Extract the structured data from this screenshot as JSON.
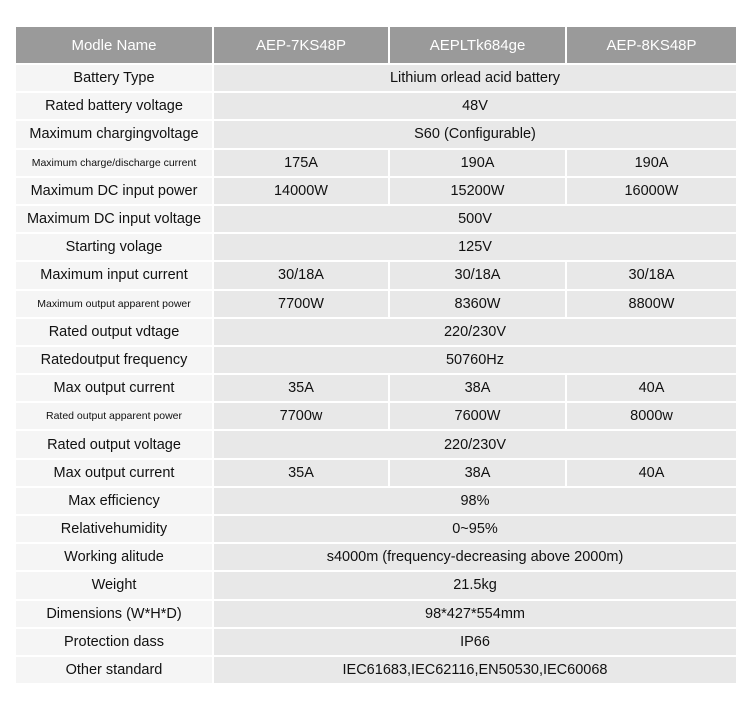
{
  "header": [
    "Modle Name",
    "AEP-7KS48P",
    "AEPLTk684ge",
    "AEP-8KS48P"
  ],
  "rows": [
    {
      "label": "Battery Type",
      "values": [
        "Lithium orlead acid battery"
      ]
    },
    {
      "label": "Rated battery voltage",
      "values": [
        "48V"
      ]
    },
    {
      "label": "Maximum chargingvoltage",
      "values": [
        "S60 (Configurable)"
      ]
    },
    {
      "label": "Maximum charge/discharge current",
      "small": true,
      "values": [
        "175A",
        "190A",
        "190A"
      ]
    },
    {
      "label": "Maximum DC input power",
      "values": [
        "14000W",
        "15200W",
        "16000W"
      ]
    },
    {
      "label": "Maximum DC input voltage",
      "values": [
        "500V"
      ]
    },
    {
      "label": "Starting volage",
      "values": [
        "125V"
      ]
    },
    {
      "label": "Maximum input current",
      "values": [
        "30/18A",
        "30/18A",
        "30/18A"
      ]
    },
    {
      "label": "Maximum output apparent power",
      "small": true,
      "values": [
        "7700W",
        "8360W",
        "8800W"
      ]
    },
    {
      "label": "Rated output vdtage",
      "values": [
        "220/230V"
      ]
    },
    {
      "label": "Ratedoutput frequency",
      "values": [
        "50760Hz"
      ]
    },
    {
      "label": "Max output current",
      "values": [
        "35A",
        "38A",
        "40A"
      ]
    },
    {
      "label": "Rated output apparent power",
      "small": true,
      "values": [
        "7700w",
        "7600W",
        "8000w"
      ]
    },
    {
      "label": "Rated output voltage",
      "values": [
        "220/230V"
      ]
    },
    {
      "label": "Max output current",
      "values": [
        "35A",
        "38A",
        "40A"
      ]
    },
    {
      "label": "Max efficiency",
      "values": [
        "98%"
      ]
    },
    {
      "label": "Relativehumidity",
      "values": [
        "0~95%"
      ]
    },
    {
      "label": "Working alitude",
      "values": [
        "s4000m (frequency-decreasing above 2000m)"
      ]
    },
    {
      "label": "Weight",
      "values": [
        "21.5kg"
      ]
    },
    {
      "label": "Dimensions (W*H*D)",
      "values": [
        "98*427*554mm"
      ]
    },
    {
      "label": "Protection dass",
      "values": [
        "IP66"
      ]
    },
    {
      "label": "Other standard",
      "values": [
        "IEC61683,IEC62116,EN50530,IEC60068"
      ]
    }
  ]
}
